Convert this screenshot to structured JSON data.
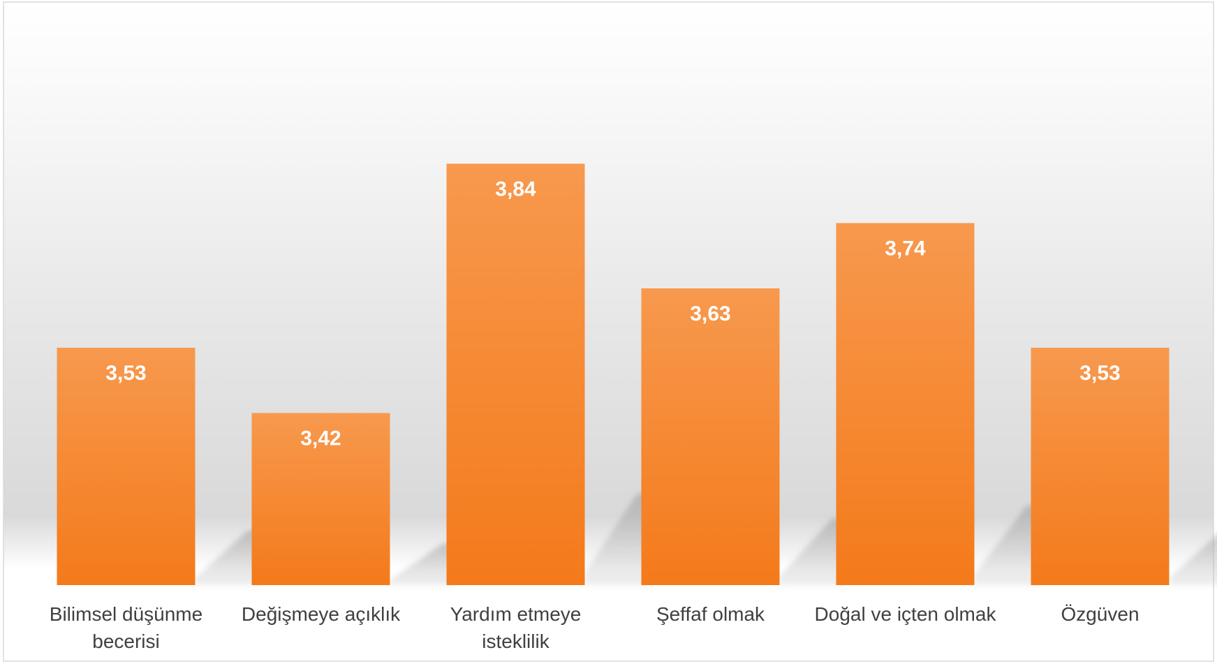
{
  "chart_data": {
    "type": "bar",
    "categories": [
      [
        "Bilimsel düşünme",
        "becerisi"
      ],
      [
        "Değişmeye açıklık"
      ],
      [
        "Yardım etmeye",
        "isteklilik"
      ],
      [
        "Şeffaf olmak"
      ],
      [
        "Doğal ve içten olmak"
      ],
      [
        "Özgüven"
      ]
    ],
    "values": [
      3.53,
      3.42,
      3.84,
      3.63,
      3.74,
      3.53
    ],
    "data_labels": [
      "3,53",
      "3,42",
      "3,84",
      "3,63",
      "3,74",
      "3,53"
    ],
    "title": "",
    "xlabel": "",
    "ylabel": "",
    "grid": false,
    "legend": "none",
    "colors": {
      "bar_top": "#f7994e",
      "bar_bottom": "#f47a1a",
      "label": "#ffffff",
      "category_text": "#404040",
      "border": "#d9d9d9"
    }
  }
}
